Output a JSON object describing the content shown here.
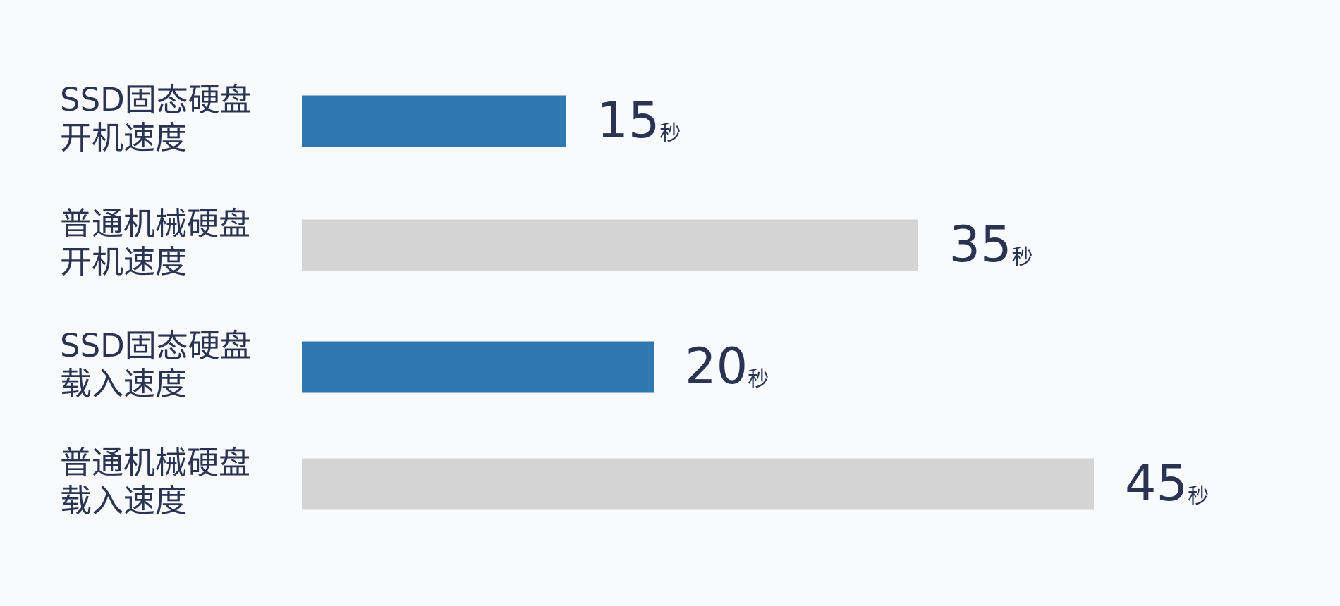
{
  "chart_data": {
    "type": "bar",
    "orientation": "horizontal",
    "categories": [
      [
        "SSD固态硬盘",
        "开机速度"
      ],
      [
        "普通机械硬盘",
        "开机速度"
      ],
      [
        "SSD固态硬盘",
        "载入速度"
      ],
      [
        "普通机械硬盘",
        "载入速度"
      ]
    ],
    "values": [
      15,
      35,
      20,
      45
    ],
    "unit": "秒",
    "colors": [
      "#2e77b0",
      "#d4d4d4",
      "#2e77b0",
      "#d4d4d4"
    ]
  }
}
